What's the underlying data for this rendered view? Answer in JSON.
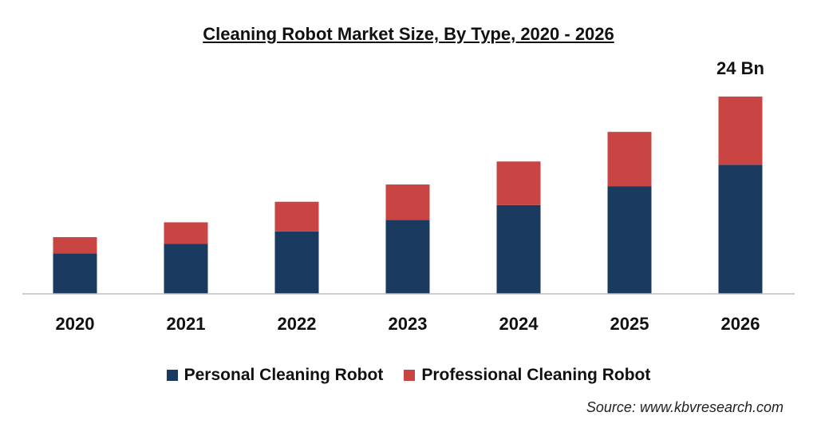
{
  "chart_data": {
    "type": "bar",
    "stacked": true,
    "title": "Cleaning Robot Market Size, By Type, 2020 - 2026",
    "categories": [
      "2020",
      "2021",
      "2022",
      "2023",
      "2024",
      "2025",
      "2026"
    ],
    "series": [
      {
        "name": "Personal Cleaning Robot",
        "color": "#1b3a5f",
        "values": [
          4.9,
          6.1,
          7.6,
          9.0,
          10.8,
          13.1,
          15.7
        ]
      },
      {
        "name": "Professional Cleaning Robot",
        "color": "#c94543",
        "values": [
          2.0,
          2.6,
          3.6,
          4.3,
          5.3,
          6.6,
          8.3
        ]
      }
    ],
    "ylim": [
      0,
      27
    ],
    "grid": false,
    "legend_position": "bottom",
    "annotations": [
      {
        "category": "2026",
        "text": "24 Bn"
      }
    ]
  },
  "source": "Source: www.kbvresearch.com"
}
